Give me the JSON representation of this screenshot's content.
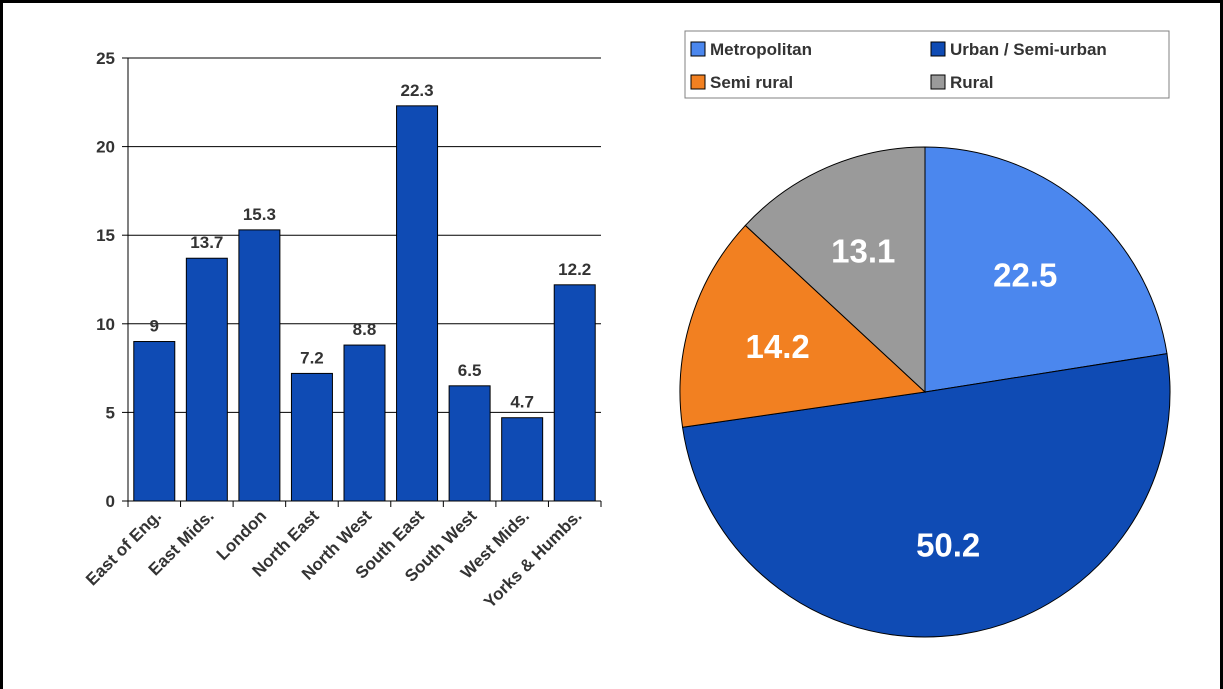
{
  "colors": {
    "bar": "#0f4bb4",
    "metropolitan": "#4b87ee",
    "urban": "#0f4bb4",
    "semi_rural": "#f28021",
    "rural": "#9a9a9a",
    "grid": "#000000",
    "label": "#333333"
  },
  "chart_data": [
    {
      "type": "bar",
      "categories": [
        "East of Eng.",
        "East Mids.",
        "London",
        "North East",
        "North West",
        "South East",
        "South West",
        "West Mids.",
        "Yorks & Humbs."
      ],
      "values": [
        9,
        13.7,
        15.3,
        7.2,
        8.8,
        22.3,
        6.5,
        4.7,
        12.2
      ],
      "data_labels": [
        "9",
        "13.7",
        "15.3",
        "7.2",
        "8.8",
        "22.3",
        "6.5",
        "4.7",
        "12.2"
      ],
      "y_ticks": [
        0,
        5,
        10,
        15,
        20,
        25
      ],
      "ylim": [
        0,
        25
      ],
      "grid": true,
      "x_label_rotation_deg": -45
    },
    {
      "type": "pie",
      "series": [
        {
          "name": "Metropolitan",
          "value": 22.5,
          "label": "22.5",
          "color_key": "metropolitan"
        },
        {
          "name": "Urban / Semi-urban",
          "value": 50.2,
          "label": "50.2",
          "color_key": "urban"
        },
        {
          "name": "Semi rural",
          "value": 14.2,
          "label": "14.2",
          "color_key": "semi_rural"
        },
        {
          "name": "Rural",
          "value": 13.1,
          "label": "13.1",
          "color_key": "rural"
        }
      ],
      "start": "top, clockwise",
      "legend": "top",
      "legend_entries": [
        "Metropolitan",
        "Urban / Semi-urban",
        "Semi rural",
        "Rural"
      ]
    }
  ]
}
